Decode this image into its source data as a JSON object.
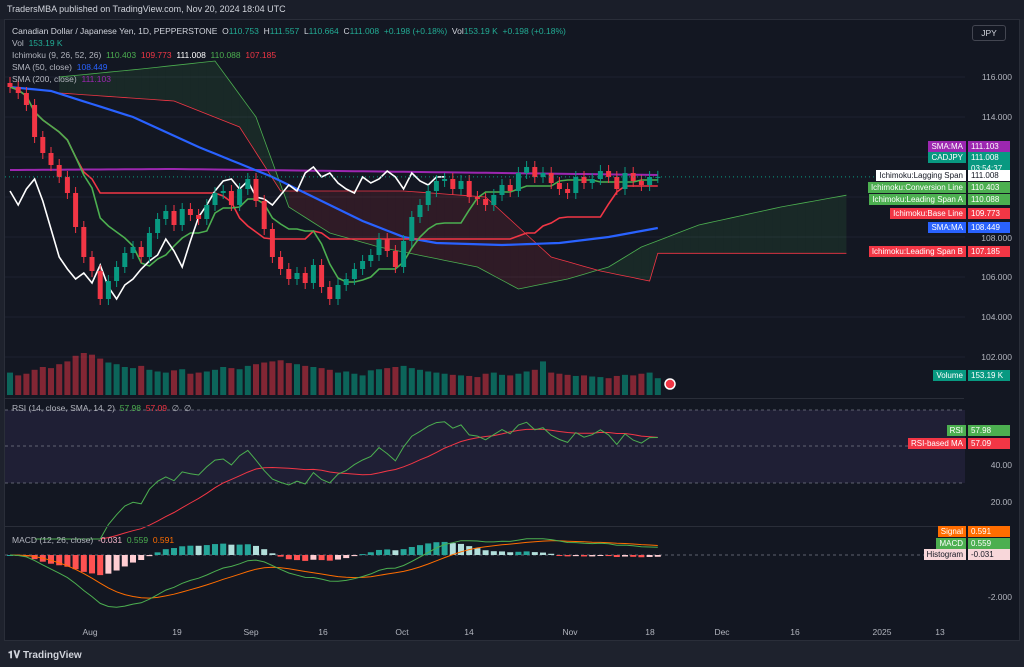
{
  "header": {
    "published": "TradersMBA published on TradingView.com, Nov 20, 2024 18:04 UTC"
  },
  "symbol": {
    "name": "Canadian Dollar / Japanese Yen, 1D, PEPPERSTONE",
    "o_label": "O",
    "o": "110.753",
    "h_label": "H",
    "h": "111.557",
    "l_label": "L",
    "l": "110.664",
    "c_label": "C",
    "c": "111.008",
    "change": "+0.198 (+0.18%)",
    "vol_label": "Vol",
    "vol": "153.19 K",
    "change2": "+0.198 (+0.18%)"
  },
  "legends": {
    "vol": {
      "label": "Vol",
      "value": "153.19 K"
    },
    "ichimoku": {
      "label": "Ichimoku (9, 26, 52, 26)",
      "v1": "110.403",
      "v2": "109.773",
      "v3": "111.008",
      "v4": "110.088",
      "v5": "107.185"
    },
    "sma50": {
      "label": "SMA (50, close)",
      "value": "108.449"
    },
    "sma200": {
      "label": "SMA (200, close)",
      "value": "111.103"
    },
    "rsi": {
      "label": "RSI (14, close, SMA, 14, 2)",
      "v1": "57.98",
      "v2": "57.09",
      "v3": "∅",
      "v4": "∅"
    },
    "macd": {
      "label": "MACD (12, 26, close)",
      "v1": "-0.031",
      "v2": "0.559",
      "v3": "0.591"
    }
  },
  "currency_button": "JPY",
  "price_axis": [
    "116.000",
    "114.000",
    "108.000",
    "106.000",
    "104.000",
    "102.000"
  ],
  "rsi_axis": [
    "40.00",
    "20.00"
  ],
  "macd_axis": [
    "-2.000"
  ],
  "badges": [
    {
      "label": "SMA:MA",
      "value": "111.103",
      "color": "#9c27b0"
    },
    {
      "label": "CADJPY",
      "value": "111.008",
      "sub": "03:54:37",
      "color": "#089981"
    },
    {
      "label": "Ichimoku:Lagging Span",
      "value": "111.008",
      "color": "#ffffff"
    },
    {
      "label": "Ichimoku:Conversion Line",
      "value": "110.403",
      "color": "#4caf50"
    },
    {
      "label": "Ichimoku:Leading Span A",
      "value": "110.088",
      "color": "#4caf50"
    },
    {
      "label": "Ichimoku:Base Line",
      "value": "109.773",
      "color": "#f23645"
    },
    {
      "label": "SMA:MA",
      "value": "108.449",
      "color": "#2962ff"
    },
    {
      "label": "Ichimoku:Leading Span B",
      "value": "107.185",
      "color": "#f23645"
    },
    {
      "label": "Volume",
      "value": "153.19 K",
      "color": "#089981"
    },
    {
      "label": "RSI",
      "value": "57.98",
      "color": "#4caf50"
    },
    {
      "label": "RSI-based MA",
      "value": "57.09",
      "color": "#f23645"
    },
    {
      "label": "Signal",
      "value": "0.591",
      "color": "#ff6d00"
    },
    {
      "label": "MACD",
      "value": "0.559",
      "color": "#4caf50"
    },
    {
      "label": "Histogram",
      "value": "-0.031",
      "color": "#f8d7da"
    }
  ],
  "time_axis": [
    "Aug",
    "19",
    "Sep",
    "16",
    "Oct",
    "14",
    "Nov",
    "18",
    "Dec",
    "16",
    "2025",
    "13"
  ],
  "footer": "TradingView",
  "chart_data": {
    "type": "candlestick",
    "closes": [
      115.5,
      115.2,
      114.6,
      113.0,
      112.2,
      111.6,
      111.0,
      110.2,
      108.5,
      107.0,
      106.3,
      104.9,
      105.8,
      106.5,
      107.2,
      107.5,
      107.0,
      108.2,
      108.9,
      109.3,
      108.6,
      109.4,
      109.1,
      108.9,
      109.6,
      110.2,
      110.3,
      109.6,
      110.4,
      110.9,
      109.8,
      108.4,
      107.0,
      106.4,
      105.9,
      106.2,
      105.7,
      106.6,
      105.5,
      104.9,
      105.6,
      105.9,
      106.4,
      106.8,
      107.1,
      107.9,
      107.3,
      106.5,
      107.8,
      109.0,
      109.6,
      110.3,
      110.8,
      110.9,
      110.4,
      110.8,
      110.0,
      109.9,
      109.6,
      110.1,
      110.6,
      110.3,
      111.2,
      111.5,
      111.0,
      111.2,
      110.7,
      110.4,
      110.2,
      111.0,
      110.7,
      110.9,
      111.3,
      111.0,
      110.4,
      111.2,
      110.8,
      110.6,
      111.0,
      111.008
    ],
    "volumes": [
      40,
      35,
      38,
      45,
      50,
      48,
      55,
      60,
      70,
      75,
      72,
      65,
      58,
      55,
      50,
      48,
      52,
      45,
      42,
      40,
      44,
      46,
      38,
      40,
      42,
      45,
      50,
      48,
      46,
      52,
      55,
      58,
      60,
      62,
      57,
      55,
      52,
      50,
      48,
      45,
      40,
      42,
      38,
      35,
      44,
      46,
      48,
      50,
      52,
      48,
      45,
      42,
      40,
      38,
      36,
      35,
      34,
      32,
      38,
      40,
      36,
      35,
      38,
      42,
      45,
      60,
      40,
      38,
      36,
      34,
      35,
      33,
      32,
      30,
      34,
      36,
      35,
      38,
      40,
      30
    ],
    "sma50": [
      [
        0,
        115.5
      ],
      [
        5,
        115.3
      ],
      [
        15,
        114
      ],
      [
        23,
        112.5
      ],
      [
        32,
        111
      ],
      [
        38,
        109.8
      ],
      [
        43,
        108.8
      ],
      [
        48,
        108
      ],
      [
        52,
        107.7
      ],
      [
        60,
        107.6
      ],
      [
        67,
        107.7
      ],
      [
        73,
        108
      ],
      [
        79,
        108.45
      ]
    ],
    "sma200": [
      [
        0,
        111.35
      ],
      [
        20,
        111.4
      ],
      [
        40,
        111.3
      ],
      [
        60,
        111.2
      ],
      [
        79,
        111.1
      ]
    ],
    "span_a": [
      [
        6,
        116
      ],
      [
        16,
        116.4
      ],
      [
        25,
        116.8
      ],
      [
        30,
        114
      ],
      [
        34,
        109.5
      ],
      [
        39,
        108.2
      ],
      [
        45,
        107.5
      ],
      [
        51,
        107
      ],
      [
        57,
        106.5
      ],
      [
        62,
        105.4
      ],
      [
        68,
        105.9
      ],
      [
        73,
        106.5
      ],
      [
        77,
        107.5
      ],
      [
        84,
        108.6
      ],
      [
        94,
        109.5
      ],
      [
        102,
        110.09
      ]
    ],
    "span_b": [
      [
        6,
        115.2
      ],
      [
        20,
        114.8
      ],
      [
        28,
        113.5
      ],
      [
        33,
        110.3
      ],
      [
        48,
        110.3
      ],
      [
        58,
        110
      ],
      [
        66,
        107
      ],
      [
        72,
        106.3
      ],
      [
        78,
        105.8
      ],
      [
        79,
        107.185
      ],
      [
        102,
        107.185
      ]
    ],
    "ylim": [
      101,
      117.5
    ]
  }
}
